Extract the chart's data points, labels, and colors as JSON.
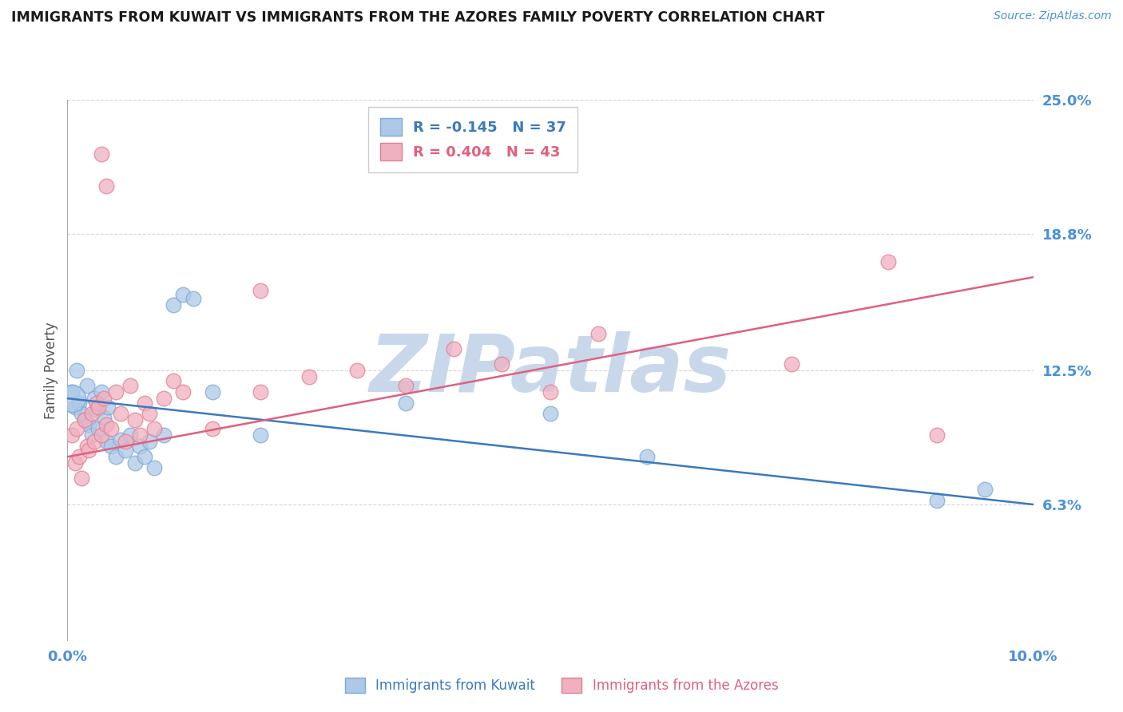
{
  "title": "IMMIGRANTS FROM KUWAIT VS IMMIGRANTS FROM THE AZORES FAMILY POVERTY CORRELATION CHART",
  "source": "Source: ZipAtlas.com",
  "ylabel": "Family Poverty",
  "xlim": [
    0.0,
    10.0
  ],
  "ylim": [
    0.0,
    25.0
  ],
  "xticks": [
    0.0,
    10.0
  ],
  "xtick_labels": [
    "0.0%",
    "10.0%"
  ],
  "yticks": [
    6.3,
    12.5,
    18.8,
    25.0
  ],
  "ytick_labels": [
    "6.3%",
    "12.5%",
    "18.8%",
    "25.0%"
  ],
  "background_color": "#ffffff",
  "grid_color": "#cccccc",
  "watermark": "ZIPatlas",
  "legend_kuwait_R": -0.145,
  "legend_kuwait_N": 37,
  "legend_azores_R": 0.404,
  "legend_azores_N": 43,
  "kuwait_scatter": [
    [
      0.05,
      11.5
    ],
    [
      0.08,
      10.8
    ],
    [
      0.1,
      12.5
    ],
    [
      0.12,
      11.0
    ],
    [
      0.15,
      10.5
    ],
    [
      0.18,
      10.2
    ],
    [
      0.2,
      11.8
    ],
    [
      0.22,
      10.0
    ],
    [
      0.25,
      9.5
    ],
    [
      0.28,
      11.2
    ],
    [
      0.3,
      10.7
    ],
    [
      0.32,
      9.8
    ],
    [
      0.35,
      11.5
    ],
    [
      0.38,
      10.3
    ],
    [
      0.4,
      9.2
    ],
    [
      0.42,
      10.8
    ],
    [
      0.45,
      9.0
    ],
    [
      0.5,
      8.5
    ],
    [
      0.55,
      9.3
    ],
    [
      0.6,
      8.8
    ],
    [
      0.65,
      9.5
    ],
    [
      0.7,
      8.2
    ],
    [
      0.75,
      9.0
    ],
    [
      0.8,
      8.5
    ],
    [
      0.85,
      9.2
    ],
    [
      0.9,
      8.0
    ],
    [
      1.0,
      9.5
    ],
    [
      1.1,
      15.5
    ],
    [
      1.2,
      16.0
    ],
    [
      1.3,
      15.8
    ],
    [
      1.5,
      11.5
    ],
    [
      2.0,
      9.5
    ],
    [
      3.5,
      11.0
    ],
    [
      5.0,
      10.5
    ],
    [
      6.0,
      8.5
    ],
    [
      9.0,
      6.5
    ],
    [
      9.5,
      7.0
    ]
  ],
  "azores_scatter": [
    [
      0.05,
      9.5
    ],
    [
      0.08,
      8.2
    ],
    [
      0.1,
      9.8
    ],
    [
      0.12,
      8.5
    ],
    [
      0.15,
      7.5
    ],
    [
      0.18,
      10.2
    ],
    [
      0.2,
      9.0
    ],
    [
      0.22,
      8.8
    ],
    [
      0.25,
      10.5
    ],
    [
      0.28,
      9.2
    ],
    [
      0.3,
      11.0
    ],
    [
      0.32,
      10.8
    ],
    [
      0.35,
      9.5
    ],
    [
      0.38,
      11.2
    ],
    [
      0.4,
      10.0
    ],
    [
      0.45,
      9.8
    ],
    [
      0.5,
      11.5
    ],
    [
      0.55,
      10.5
    ],
    [
      0.6,
      9.2
    ],
    [
      0.65,
      11.8
    ],
    [
      0.7,
      10.2
    ],
    [
      0.75,
      9.5
    ],
    [
      0.8,
      11.0
    ],
    [
      0.85,
      10.5
    ],
    [
      0.9,
      9.8
    ],
    [
      1.0,
      11.2
    ],
    [
      1.1,
      12.0
    ],
    [
      1.2,
      11.5
    ],
    [
      1.5,
      9.8
    ],
    [
      2.0,
      11.5
    ],
    [
      2.5,
      12.2
    ],
    [
      3.0,
      12.5
    ],
    [
      3.5,
      11.8
    ],
    [
      4.0,
      13.5
    ],
    [
      4.5,
      12.8
    ],
    [
      5.5,
      14.2
    ],
    [
      7.5,
      12.8
    ],
    [
      8.5,
      17.5
    ],
    [
      0.35,
      22.5
    ],
    [
      0.4,
      21.0
    ],
    [
      2.0,
      16.2
    ],
    [
      5.0,
      11.5
    ],
    [
      9.0,
      9.5
    ]
  ],
  "kuwait_line": [
    11.2,
    6.3
  ],
  "azores_line": [
    8.5,
    16.8
  ],
  "kuwait_line_color": "#3a7abf",
  "azores_line_color": "#e06080",
  "kuwait_marker_facecolor": "#adc8e8",
  "kuwait_marker_edgecolor": "#7aaad4",
  "azores_marker_facecolor": "#f0b0c0",
  "azores_marker_edgecolor": "#e08090",
  "title_color": "#1a1a1a",
  "tick_label_color": "#4a90d9",
  "watermark_color": "#c8d8ea",
  "source_color": "#4a90d9"
}
